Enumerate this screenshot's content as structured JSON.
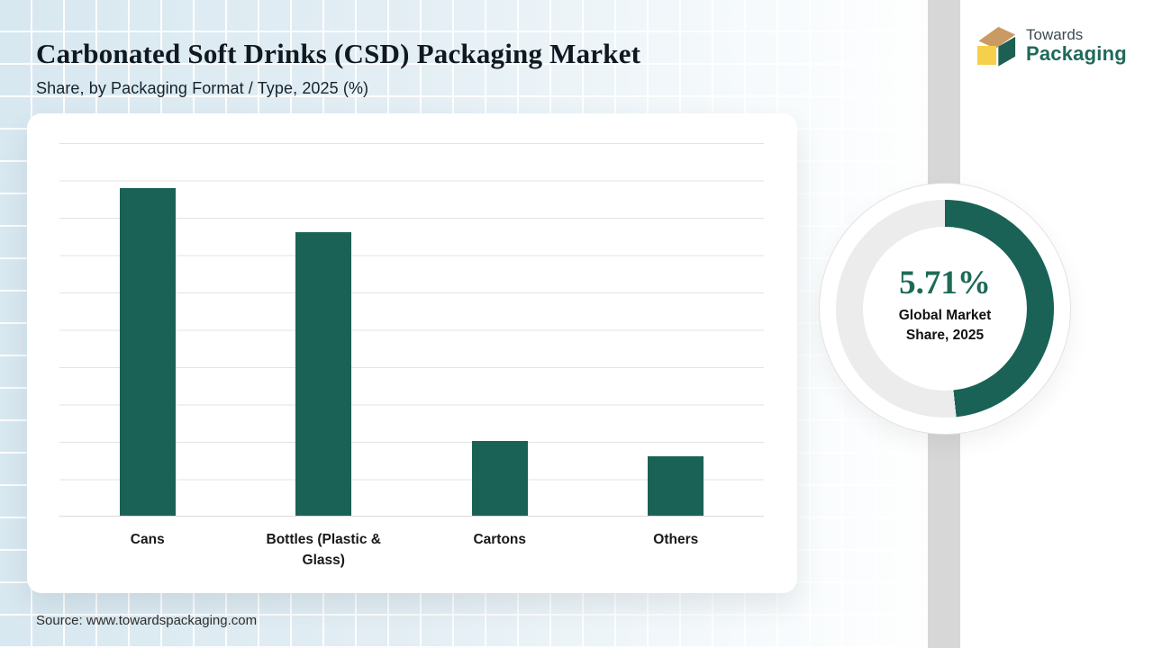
{
  "header": {
    "title": "Carbonated Soft Drinks (CSD) Packaging Market",
    "subtitle": "Share, by Packaging Format / Type, 2025 (%)"
  },
  "logo": {
    "word1": "Towards",
    "word2": "Packaging",
    "icon": "box-cube-icon",
    "colors": {
      "top": "#c99b62",
      "front": "#f7d04b",
      "side": "#1d5f52",
      "text_dark": "#3c4a52",
      "text_green": "#20695a"
    }
  },
  "chart_data": [
    {
      "type": "bar",
      "title": "Share, by Packaging Format / Type, 2025 (%)",
      "categories": [
        "Cans",
        "Bottles (Plastic & Glass)",
        "Cartons",
        "Others"
      ],
      "values": [
        44,
        38,
        10,
        8
      ],
      "unit": "%",
      "xlabel": "",
      "ylabel": "",
      "ylim": [
        0,
        50
      ],
      "gridline_step": 5,
      "grid": true,
      "y_tick_labels_visible": false,
      "legend_position": "none",
      "bar_color": "#1a6255"
    },
    {
      "type": "pie",
      "style": "donut",
      "value": 5.71,
      "value_label": "5.71%",
      "caption_line1": "Global Market",
      "caption_line2": "Share, 2025",
      "arc_degrees": 174,
      "arc_color": "#1a6255",
      "track_color": "#ececec"
    }
  ],
  "footer": {
    "source": "Source: www.towardspackaging.com"
  },
  "colors": {
    "accent_green": "#1a6255",
    "band_gray": "#d7d7d7",
    "background_blue": "#d8e8f0",
    "card_white": "#ffffff"
  }
}
